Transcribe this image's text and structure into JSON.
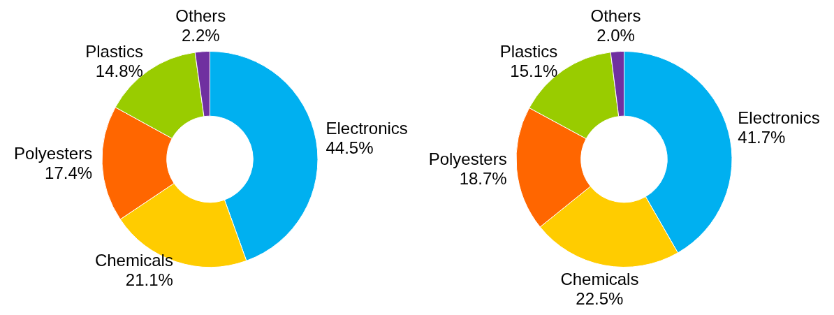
{
  "chart_data": [
    {
      "type": "donut",
      "categories": [
        "Electronics",
        "Chemicals",
        "Polyesters",
        "Plastics",
        "Others"
      ],
      "values": [
        44.5,
        21.1,
        17.4,
        14.8,
        2.2
      ],
      "colors": [
        "#00b0f0",
        "#ffcc00",
        "#ff6600",
        "#99cc00",
        "#7030a0"
      ],
      "value_labels": [
        "44.5%",
        "21.1%",
        "17.4%",
        "14.8%",
        "2.2%"
      ],
      "legend": false
    },
    {
      "type": "donut",
      "categories": [
        "Electronics",
        "Chemicals",
        "Polyesters",
        "Plastics",
        "Others"
      ],
      "values": [
        41.7,
        22.5,
        18.7,
        15.1,
        2.0
      ],
      "colors": [
        "#00b0f0",
        "#ffcc00",
        "#ff6600",
        "#99cc00",
        "#7030a0"
      ],
      "value_labels": [
        "41.7%",
        "22.5%",
        "18.7%",
        "15.1%",
        "2.0%"
      ],
      "legend": false
    }
  ]
}
